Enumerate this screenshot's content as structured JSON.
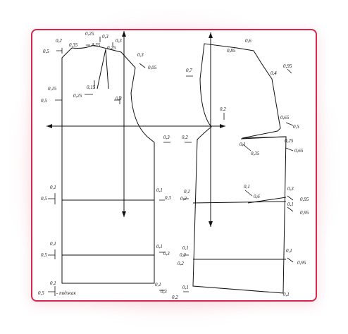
{
  "labels": {
    "left": {
      "l_02": "0,2",
      "l_025": "0,25",
      "l_03a": "0,3",
      "l_03b": "0,3",
      "l_05a": "0,5",
      "l_035": "0,35",
      "l_335": "3,35",
      "l_025b": "0,25",
      "l_03c": "0,3",
      "l_005": "0,05",
      "l_015a": "0,15",
      "l_05b": "0,5",
      "l_015b": "0,15",
      "l_025c": "0,25",
      "l_03d": "0,3",
      "l_01a": "0,1",
      "l_05c": "0,5",
      "l_01b": "0,1",
      "l_05d": "0,5",
      "l_01c": "0,1",
      "l_05e": "0,5",
      "l_pidzhak": "- пиджак",
      "r_03": "0,3",
      "r_01a": "0,1",
      "r_03b": "0,3",
      "r_01b": "0,1",
      "r_03c": "0,3",
      "r_01c": "0,1",
      "r_03d": "0,3"
    },
    "right": {
      "l_02": "0,2",
      "l_01a": "0,1",
      "l_02b": "0,2",
      "l_01b": "0,1",
      "l_02c": "0,2",
      "l_01c": "0,1",
      "l_02d": "0,2",
      "l_01d": "0,1",
      "l_02e": "0,2",
      "t_06": "0,6",
      "t_085": "0,85",
      "t_07": "0,7",
      "t_04": "0,4",
      "t_095": "0,95",
      "t_02": "0,2",
      "r_065": "0,65",
      "r_05": "0,5",
      "r_025": "0,25",
      "r_065b": "0,65",
      "m_01": "0,1",
      "m_035": "0,35",
      "m_01b": "0,1",
      "m_06": "0,6",
      "r_03": "0,3",
      "r_095a": "0,95",
      "r_01": "0,1",
      "r_095b": "0,95",
      "r_01b": "0,1",
      "r_095c": "0,95",
      "r_01c": "0,1"
    }
  }
}
